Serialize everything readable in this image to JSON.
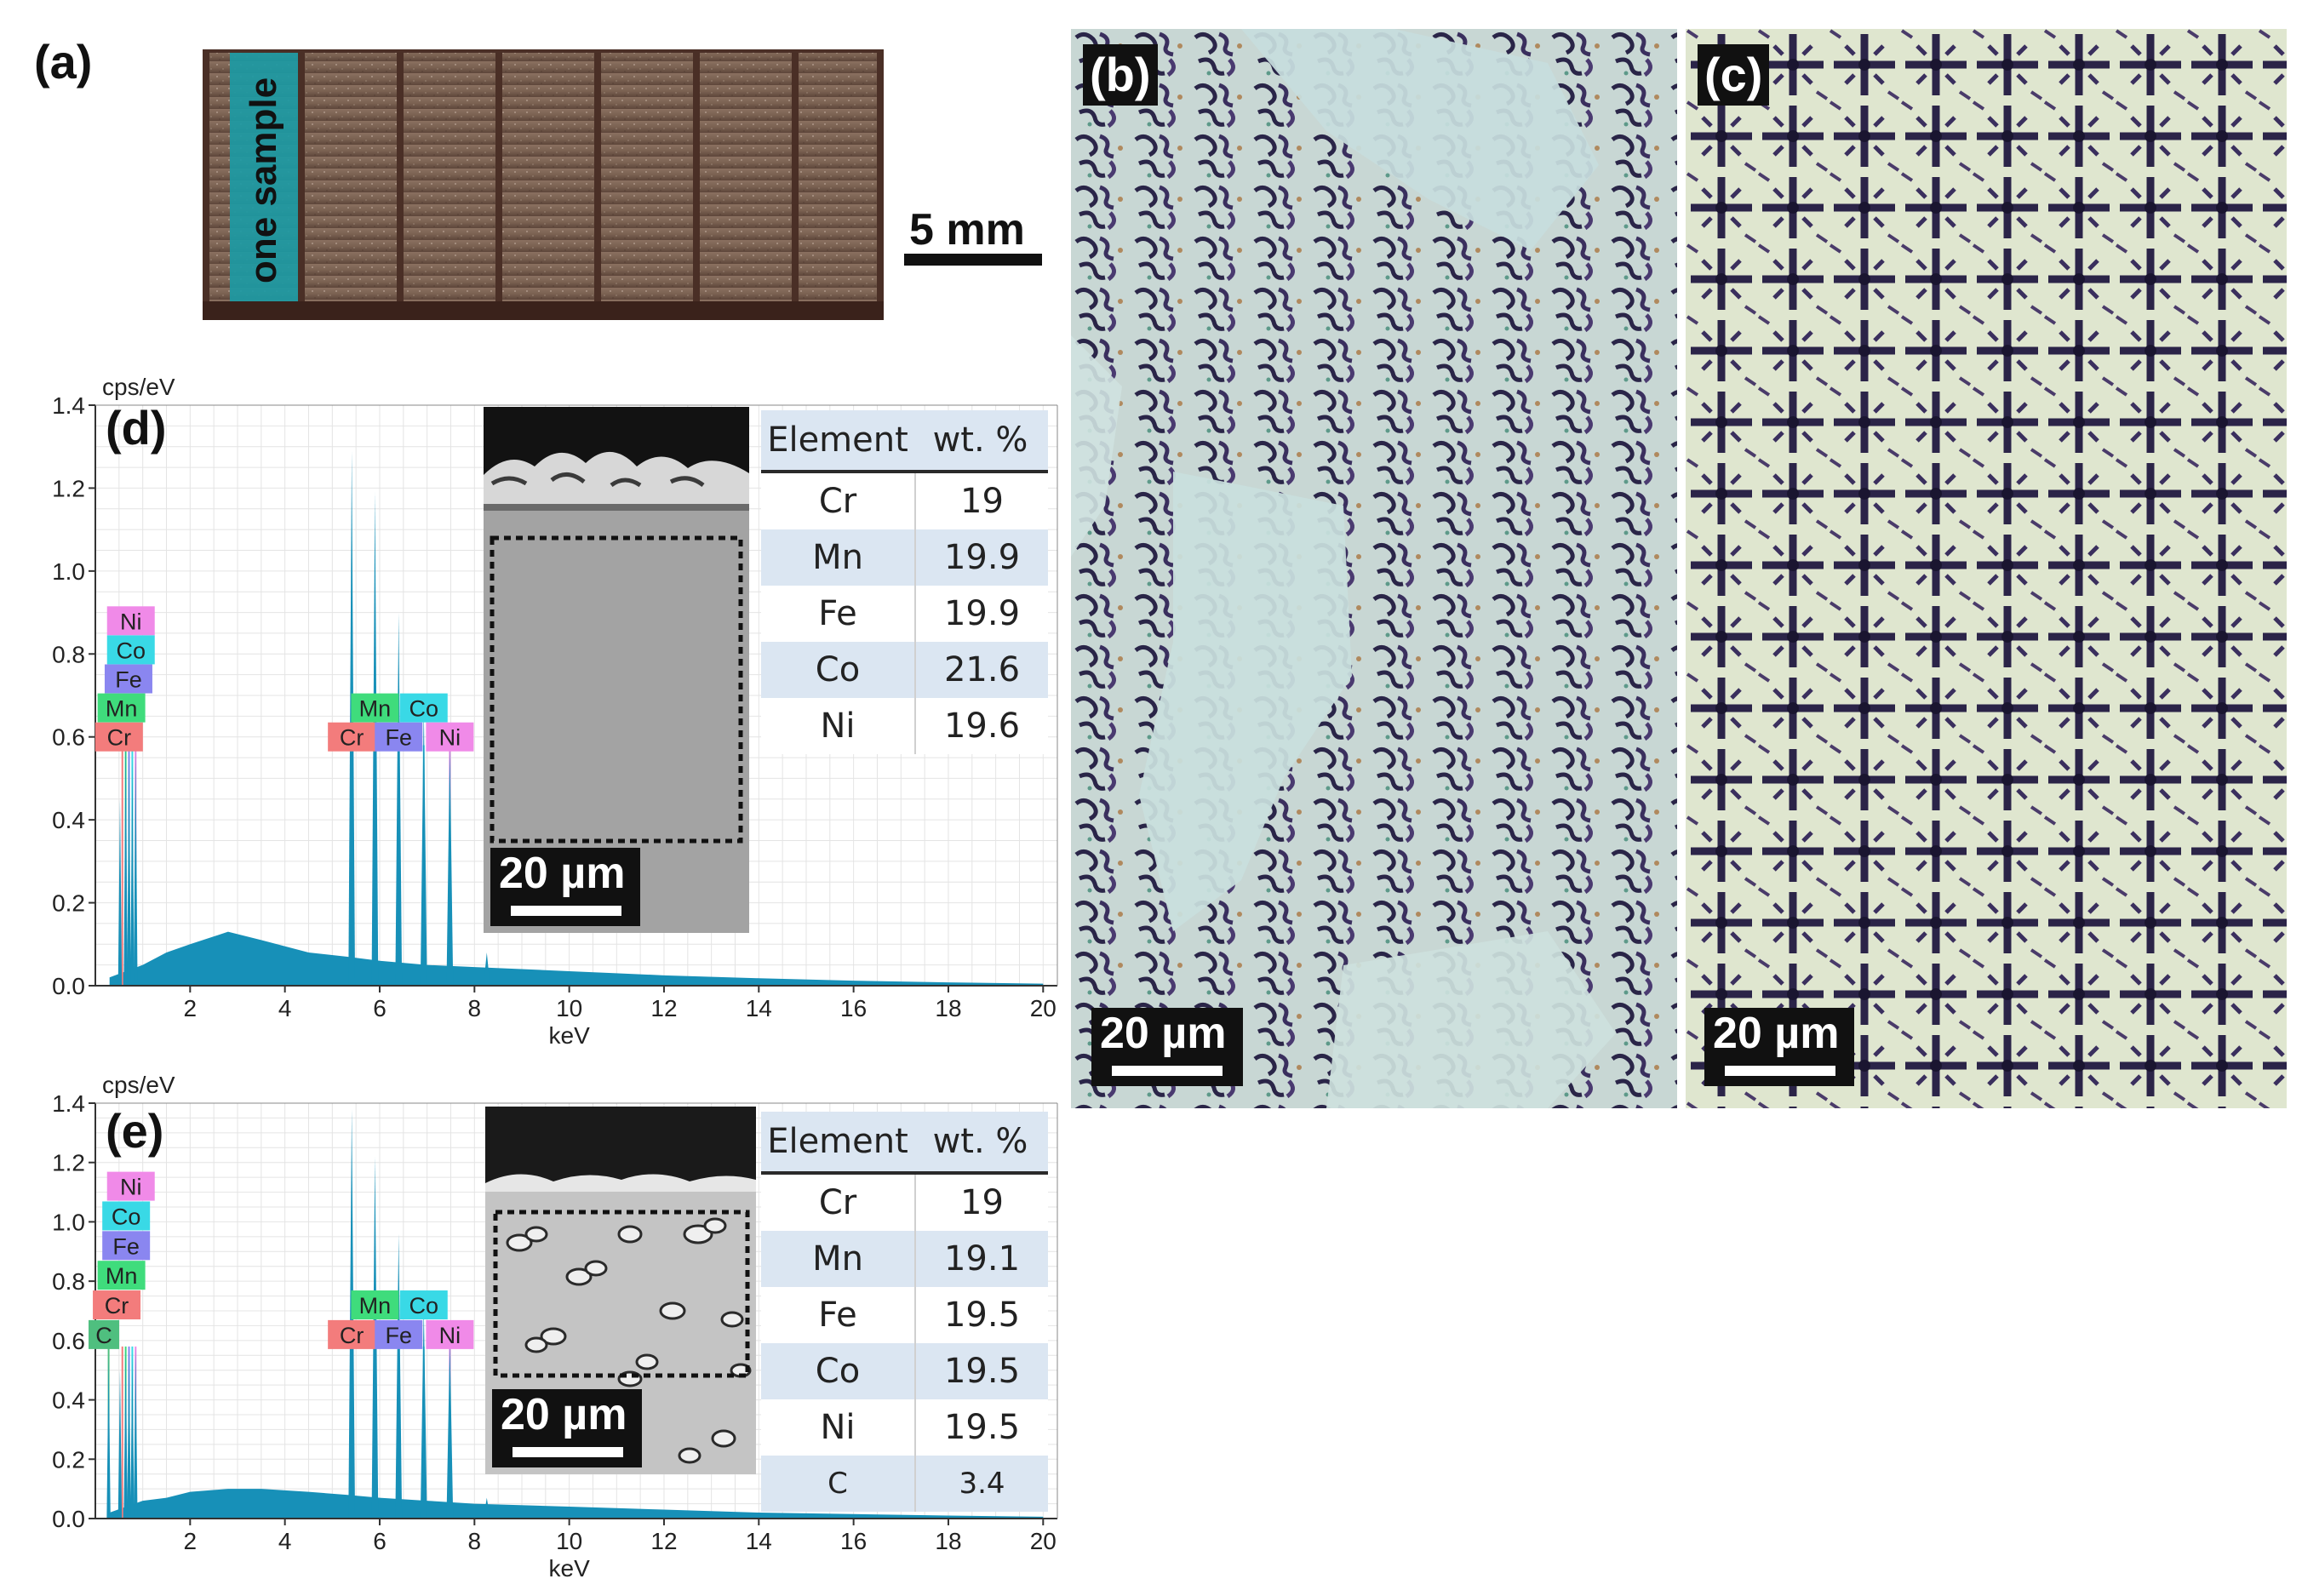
{
  "figure": {
    "panels": {
      "a": {
        "letter": "(a)",
        "sample_label": "one sample",
        "scale_label": "5 mm",
        "segments": 7
      },
      "b": {
        "letter": "(b)",
        "scale_label": "20 µm"
      },
      "c": {
        "letter": "(c)",
        "scale_label": "20 µm"
      },
      "d": {
        "letter": "(d)",
        "sem_scale_label": "20 µm",
        "table_header": [
          "Element",
          "wt. %"
        ],
        "table_rows": [
          [
            "Cr",
            "19"
          ],
          [
            "Mn",
            "19.9"
          ],
          [
            "Fe",
            "19.9"
          ],
          [
            "Co",
            "21.6"
          ],
          [
            "Ni",
            "19.6"
          ]
        ]
      },
      "e": {
        "letter": "(e)",
        "sem_scale_label": "20 µm",
        "table_header": [
          "Element",
          "wt. %"
        ],
        "table_rows": [
          [
            "Cr",
            "19"
          ],
          [
            "Mn",
            "19.1"
          ],
          [
            "Fe",
            "19.5"
          ],
          [
            "Co",
            "19.5"
          ],
          [
            "Ni",
            "19.5"
          ],
          [
            "C",
            "3.4"
          ]
        ]
      }
    }
  },
  "colors": {
    "spectrum_fill": "#1790b8",
    "Cr": "#f37c7c",
    "Mn": "#3fdc7c",
    "Fe": "#8a86f0",
    "Co": "#39d9e6",
    "Ni": "#f08ae8",
    "C": "#4fbf7f",
    "sample_highlight": "#1c9aa4",
    "table_stripe": "#dbe6f2"
  },
  "chart_data": [
    {
      "type": "area",
      "panel": "d",
      "ylabel": "cps/eV",
      "xlabel": "keV",
      "xlim": [
        0,
        20.3
      ],
      "ylim": [
        0,
        1.4
      ],
      "x_ticks": [
        "2",
        "4",
        "6",
        "8",
        "10",
        "12",
        "14",
        "16",
        "18",
        "20"
      ],
      "y_ticks": [
        "0.0",
        "0.2",
        "0.4",
        "0.6",
        "0.8",
        "1.0",
        "1.2",
        "1.4"
      ],
      "grid": true,
      "peaks": [
        {
          "x": 0.52,
          "y": 0.45
        },
        {
          "x": 0.64,
          "y": 0.63
        },
        {
          "x": 0.71,
          "y": 0.58
        },
        {
          "x": 0.78,
          "y": 0.55
        },
        {
          "x": 0.85,
          "y": 0.58
        },
        {
          "x": 5.41,
          "y": 1.29
        },
        {
          "x": 5.9,
          "y": 1.19
        },
        {
          "x": 6.4,
          "y": 0.9
        },
        {
          "x": 6.93,
          "y": 0.68
        },
        {
          "x": 7.48,
          "y": 0.58
        },
        {
          "x": 8.26,
          "y": 0.08
        }
      ],
      "background": [
        {
          "x": 0.3,
          "y": 0.02
        },
        {
          "x": 1.0,
          "y": 0.05
        },
        {
          "x": 1.5,
          "y": 0.08
        },
        {
          "x": 2.0,
          "y": 0.1
        },
        {
          "x": 2.8,
          "y": 0.13
        },
        {
          "x": 3.5,
          "y": 0.11
        },
        {
          "x": 4.5,
          "y": 0.08
        },
        {
          "x": 5.3,
          "y": 0.07
        },
        {
          "x": 6.0,
          "y": 0.06
        },
        {
          "x": 7.0,
          "y": 0.05
        },
        {
          "x": 8.0,
          "y": 0.045
        },
        {
          "x": 10.0,
          "y": 0.035
        },
        {
          "x": 12.0,
          "y": 0.025
        },
        {
          "x": 14.0,
          "y": 0.018
        },
        {
          "x": 16.0,
          "y": 0.012
        },
        {
          "x": 18.0,
          "y": 0.008
        },
        {
          "x": 20.0,
          "y": 0.005
        }
      ],
      "element_lines": [
        {
          "el": "Cr",
          "x": 0.57
        },
        {
          "el": "Mn",
          "x": 0.64
        },
        {
          "el": "Fe",
          "x": 0.71
        },
        {
          "el": "Co",
          "x": 0.78
        },
        {
          "el": "Ni",
          "x": 0.85
        },
        {
          "el": "Cr",
          "x": 5.41
        },
        {
          "el": "Mn",
          "x": 5.9
        },
        {
          "el": "Fe",
          "x": 6.4
        },
        {
          "el": "Co",
          "x": 6.93
        },
        {
          "el": "Ni",
          "x": 7.48
        }
      ],
      "labels_left": [
        {
          "text": "Ni",
          "el": "Ni",
          "x": 0.75,
          "y": 0.88
        },
        {
          "text": "Co",
          "el": "Co",
          "x": 0.75,
          "y": 0.81
        },
        {
          "text": "Fe",
          "el": "Fe",
          "x": 0.7,
          "y": 0.74
        },
        {
          "text": "Mn",
          "el": "Mn",
          "x": 0.55,
          "y": 0.67
        },
        {
          "text": "Cr",
          "el": "Cr",
          "x": 0.5,
          "y": 0.6
        }
      ],
      "labels_right": [
        {
          "text": "Mn",
          "el": "Mn",
          "x": 5.9,
          "y": 0.67
        },
        {
          "text": "Co",
          "el": "Co",
          "x": 6.93,
          "y": 0.67
        },
        {
          "text": "Cr",
          "el": "Cr",
          "x": 5.41,
          "y": 0.6
        },
        {
          "text": "Fe",
          "el": "Fe",
          "x": 6.4,
          "y": 0.6
        },
        {
          "text": "Ni",
          "el": "Ni",
          "x": 7.48,
          "y": 0.6
        }
      ]
    },
    {
      "type": "area",
      "panel": "e",
      "ylabel": "cps/eV",
      "xlabel": "keV",
      "xlim": [
        0,
        20.3
      ],
      "ylim": [
        0,
        1.4
      ],
      "x_ticks": [
        "2",
        "4",
        "6",
        "8",
        "10",
        "12",
        "14",
        "16",
        "18",
        "20"
      ],
      "y_ticks": [
        "0.0",
        "0.2",
        "0.4",
        "0.6",
        "0.8",
        "1.0",
        "1.2",
        "1.4"
      ],
      "grid": true,
      "peaks": [
        {
          "x": 0.28,
          "y": 0.55
        },
        {
          "x": 0.52,
          "y": 0.5
        },
        {
          "x": 0.64,
          "y": 0.58
        },
        {
          "x": 0.71,
          "y": 0.58
        },
        {
          "x": 0.78,
          "y": 0.56
        },
        {
          "x": 0.85,
          "y": 0.58
        },
        {
          "x": 5.41,
          "y": 1.38
        },
        {
          "x": 5.9,
          "y": 1.22
        },
        {
          "x": 6.4,
          "y": 0.96
        },
        {
          "x": 6.93,
          "y": 0.72
        },
        {
          "x": 7.48,
          "y": 0.6
        },
        {
          "x": 8.26,
          "y": 0.07
        }
      ],
      "background": [
        {
          "x": 0.3,
          "y": 0.02
        },
        {
          "x": 1.0,
          "y": 0.06
        },
        {
          "x": 1.5,
          "y": 0.07
        },
        {
          "x": 2.0,
          "y": 0.09
        },
        {
          "x": 2.8,
          "y": 0.1
        },
        {
          "x": 3.5,
          "y": 0.1
        },
        {
          "x": 4.5,
          "y": 0.09
        },
        {
          "x": 5.3,
          "y": 0.08
        },
        {
          "x": 6.0,
          "y": 0.07
        },
        {
          "x": 7.0,
          "y": 0.06
        },
        {
          "x": 8.0,
          "y": 0.05
        },
        {
          "x": 10.0,
          "y": 0.04
        },
        {
          "x": 12.0,
          "y": 0.03
        },
        {
          "x": 14.0,
          "y": 0.02
        },
        {
          "x": 16.0,
          "y": 0.015
        },
        {
          "x": 18.0,
          "y": 0.01
        },
        {
          "x": 20.0,
          "y": 0.006
        }
      ],
      "element_lines": [
        {
          "el": "C",
          "x": 0.28
        },
        {
          "el": "Cr",
          "x": 0.57
        },
        {
          "el": "Mn",
          "x": 0.64
        },
        {
          "el": "Fe",
          "x": 0.71
        },
        {
          "el": "Co",
          "x": 0.78
        },
        {
          "el": "Ni",
          "x": 0.85
        },
        {
          "el": "Cr",
          "x": 5.41
        },
        {
          "el": "Mn",
          "x": 5.9
        },
        {
          "el": "Fe",
          "x": 6.4
        },
        {
          "el": "Co",
          "x": 6.93
        },
        {
          "el": "Ni",
          "x": 7.48
        }
      ],
      "labels_left": [
        {
          "text": "Ni",
          "el": "Ni",
          "x": 0.75,
          "y": 1.12
        },
        {
          "text": "Co",
          "el": "Co",
          "x": 0.65,
          "y": 1.02
        },
        {
          "text": "Fe",
          "el": "Fe",
          "x": 0.65,
          "y": 0.92
        },
        {
          "text": "Mn",
          "el": "Mn",
          "x": 0.55,
          "y": 0.82
        },
        {
          "text": "Cr",
          "el": "Cr",
          "x": 0.45,
          "y": 0.72
        },
        {
          "text": "C",
          "el": "C",
          "x": 0.18,
          "y": 0.62
        }
      ],
      "labels_right": [
        {
          "text": "Mn",
          "el": "Mn",
          "x": 5.9,
          "y": 0.72
        },
        {
          "text": "Co",
          "el": "Co",
          "x": 6.93,
          "y": 0.72
        },
        {
          "text": "Cr",
          "el": "Cr",
          "x": 5.41,
          "y": 0.62
        },
        {
          "text": "Fe",
          "el": "Fe",
          "x": 6.4,
          "y": 0.62
        },
        {
          "text": "Ni",
          "el": "Ni",
          "x": 7.48,
          "y": 0.62
        }
      ]
    }
  ]
}
